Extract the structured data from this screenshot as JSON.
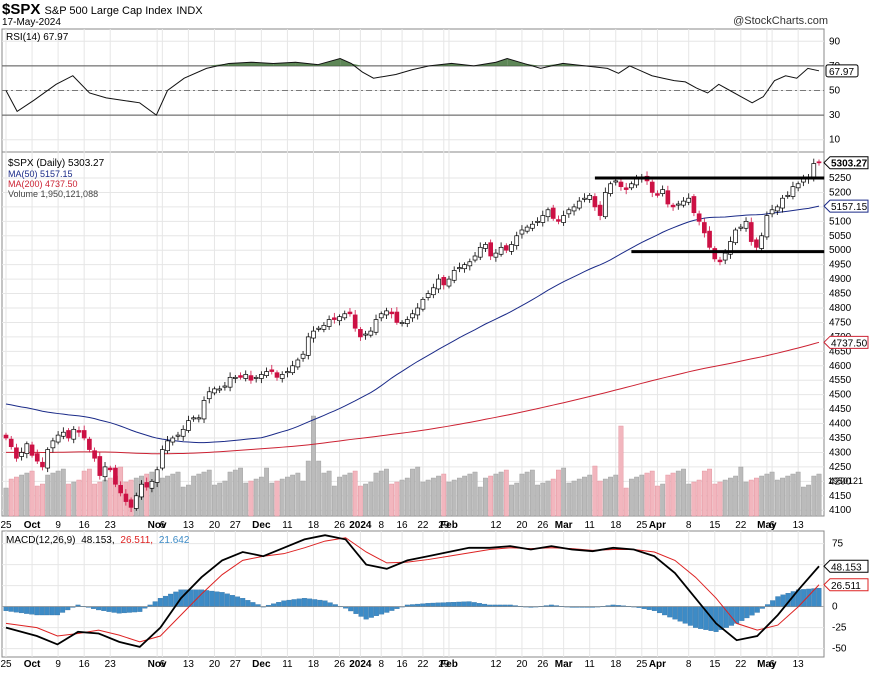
{
  "header": {
    "symbol": "$SPX",
    "name": "S&P 500 Large Cap Index",
    "exchange": "INDX",
    "date": "17-May-2024",
    "source": "@StockCharts.com"
  },
  "colors": {
    "up": "#ffffff",
    "down": "#cc1144",
    "ma50": "#1a2a88",
    "ma200": "#cc2233",
    "vol_up": "#bbbbbb",
    "vol_down": "#f2b6be",
    "rsi_fill": "#4d7a45",
    "macd_hist": "#3d8bc6",
    "signal": "#dd2222"
  },
  "chart_data": [
    {
      "type": "line",
      "panel": "rsi",
      "legend": "RSI(14) 67.97",
      "ylim": [
        0,
        100
      ],
      "yticks": [
        10,
        30,
        50,
        70,
        90
      ],
      "reference_lines": [
        30,
        50,
        70
      ],
      "last_value_label": "67.97",
      "points": [
        [
          0,
          50
        ],
        [
          2,
          33
        ],
        [
          5,
          42
        ],
        [
          9,
          55
        ],
        [
          12,
          62
        ],
        [
          15,
          48
        ],
        [
          18,
          44
        ],
        [
          21,
          42
        ],
        [
          24,
          40
        ],
        [
          27,
          30
        ],
        [
          29,
          50
        ],
        [
          32,
          60
        ],
        [
          36,
          68
        ],
        [
          40,
          72
        ],
        [
          44,
          73
        ],
        [
          48,
          72
        ],
        [
          52,
          73
        ],
        [
          56,
          71
        ],
        [
          60,
          76
        ],
        [
          62,
          72
        ],
        [
          64,
          65
        ],
        [
          66,
          60
        ],
        [
          70,
          63
        ],
        [
          73,
          67
        ],
        [
          76,
          70
        ],
        [
          80,
          72
        ],
        [
          84,
          70
        ],
        [
          88,
          73
        ],
        [
          90,
          76
        ],
        [
          93,
          72
        ],
        [
          96,
          68
        ],
        [
          100,
          72
        ],
        [
          104,
          70
        ],
        [
          108,
          68
        ],
        [
          110,
          64
        ],
        [
          112,
          70
        ],
        [
          114,
          66
        ],
        [
          116,
          62
        ],
        [
          118,
          60
        ],
        [
          120,
          58
        ],
        [
          122,
          57
        ],
        [
          124,
          52
        ],
        [
          126,
          48
        ],
        [
          128,
          55
        ],
        [
          130,
          50
        ],
        [
          132,
          45
        ],
        [
          134,
          40
        ],
        [
          136,
          45
        ],
        [
          138,
          58
        ],
        [
          140,
          62
        ],
        [
          142,
          60
        ],
        [
          144,
          68
        ],
        [
          146,
          66
        ]
      ]
    },
    {
      "type": "candlestick",
      "panel": "price",
      "legend_price": "$SPX (Daily) 5303.27",
      "legend_ma50": "MA(50) 5157.15",
      "legend_ma200": "MA(200) 4737.50",
      "legend_volume": "Volume 1,950,121,088",
      "ylim": [
        4080,
        5340
      ],
      "yticks": [
        4100,
        4150,
        4200,
        4250,
        4300,
        4350,
        4400,
        4450,
        4500,
        4550,
        4600,
        4650,
        4700,
        4750,
        4800,
        4850,
        4900,
        4950,
        5000,
        5050,
        5100,
        5150,
        5200,
        5250
      ],
      "last_price_label": "5303.27",
      "ma50_label": "5157.15",
      "ma200_label": "4737.50",
      "volume_label": "1950121",
      "x_ticks": [
        {
          "i": 0,
          "label": "25"
        },
        {
          "i": 5,
          "label": "Oct"
        },
        {
          "i": 10,
          "label": "9"
        },
        {
          "i": 15,
          "label": "16"
        },
        {
          "i": 20,
          "label": "23"
        },
        {
          "i": 29,
          "label": "Nov"
        },
        {
          "i": 30,
          "label": "6"
        },
        {
          "i": 35,
          "label": "13"
        },
        {
          "i": 40,
          "label": "20"
        },
        {
          "i": 44,
          "label": "27"
        },
        {
          "i": 49,
          "label": "Dec"
        },
        {
          "i": 54,
          "label": "11"
        },
        {
          "i": 59,
          "label": "18"
        },
        {
          "i": 64,
          "label": "26"
        },
        {
          "i": 68,
          "label": "2024"
        },
        {
          "i": 72,
          "label": "8"
        },
        {
          "i": 76,
          "label": "16"
        },
        {
          "i": 80,
          "label": "22"
        },
        {
          "i": 84,
          "label": "29"
        },
        {
          "i": 85,
          "label": "Feb"
        },
        {
          "i": 94,
          "label": "12"
        },
        {
          "i": 99,
          "label": "20"
        },
        {
          "i": 103,
          "label": "26"
        },
        {
          "i": 107,
          "label": "Mar"
        },
        {
          "i": 112,
          "label": "11"
        },
        {
          "i": 117,
          "label": "18"
        },
        {
          "i": 122,
          "label": "25"
        },
        {
          "i": 125,
          "label": "Apr"
        },
        {
          "i": 131,
          "label": "8"
        },
        {
          "i": 136,
          "label": "15"
        },
        {
          "i": 141,
          "label": "22"
        },
        {
          "i": 146,
          "label": "May"
        },
        {
          "i": 147,
          "label": "6"
        },
        {
          "i": 152,
          "label": "13"
        }
      ],
      "support_resistance": [
        {
          "from": 113,
          "to": 157,
          "level": 5250
        },
        {
          "from": 120,
          "to": 157,
          "level": 4995
        }
      ],
      "closes": [
        4350,
        4320,
        4280,
        4300,
        4330,
        4290,
        4270,
        4250,
        4310,
        4340,
        4360,
        4370,
        4350,
        4380,
        4370,
        4350,
        4310,
        4280,
        4220,
        4250,
        4240,
        4190,
        4160,
        4130,
        4110,
        4150,
        4190,
        4180,
        4200,
        4240,
        4310,
        4340,
        4350,
        4360,
        4380,
        4410,
        4420,
        4420,
        4480,
        4510,
        4520,
        4520,
        4530,
        4560,
        4560,
        4560,
        4570,
        4550,
        4560,
        4570,
        4580,
        4580,
        4560,
        4570,
        4580,
        4600,
        4620,
        4640,
        4700,
        4720,
        4730,
        4740,
        4760,
        4760,
        4770,
        4780,
        4780,
        4730,
        4700,
        4710,
        4720,
        4760,
        4780,
        4790,
        4780,
        4750,
        4750,
        4760,
        4780,
        4800,
        4830,
        4850,
        4870,
        4900,
        4880,
        4900,
        4930,
        4940,
        4950,
        4960,
        4980,
        5010,
        5020,
        4980,
        4990,
        5010,
        5000,
        5020,
        5050,
        5070,
        5080,
        5090,
        5100,
        5120,
        5140,
        5110,
        5100,
        5120,
        5140,
        5150,
        5170,
        5180,
        5190,
        5150,
        5120,
        5200,
        5230,
        5240,
        5220,
        5210,
        5230,
        5250,
        5250,
        5240,
        5200,
        5190,
        5210,
        5160,
        5150,
        5160,
        5170,
        5180,
        5130,
        5100,
        5060,
        5010,
        4970,
        4960,
        4990,
        5030,
        5070,
        5080,
        5100,
        5030,
        5010,
        5050,
        5120,
        5140,
        5150,
        5180,
        5190,
        5220,
        5230,
        5250,
        5250,
        5300,
        5303
      ]
    },
    {
      "type": "line",
      "panel": "macd",
      "legend": "MACD(12,26,9) 48.153, 26.511, 21.642",
      "legend_parts": [
        "MACD(12,26,9)",
        "48.153,",
        "26.511,",
        "21.642"
      ],
      "ylim": [
        -60,
        90
      ],
      "yticks": [
        -50,
        -25,
        0,
        25,
        50,
        75
      ],
      "macd_label": "48.153",
      "signal_label": "26.511",
      "macd": [
        [
          0,
          -25
        ],
        [
          6,
          -35
        ],
        [
          10,
          -45
        ],
        [
          14,
          -30
        ],
        [
          18,
          -32
        ],
        [
          22,
          -42
        ],
        [
          26,
          -48
        ],
        [
          30,
          -25
        ],
        [
          34,
          10
        ],
        [
          38,
          35
        ],
        [
          42,
          55
        ],
        [
          46,
          65
        ],
        [
          50,
          60
        ],
        [
          54,
          70
        ],
        [
          58,
          80
        ],
        [
          62,
          85
        ],
        [
          66,
          80
        ],
        [
          70,
          50
        ],
        [
          74,
          45
        ],
        [
          78,
          55
        ],
        [
          82,
          60
        ],
        [
          86,
          65
        ],
        [
          90,
          70
        ],
        [
          94,
          70
        ],
        [
          98,
          72
        ],
        [
          102,
          68
        ],
        [
          106,
          72
        ],
        [
          110,
          68
        ],
        [
          114,
          66
        ],
        [
          118,
          70
        ],
        [
          122,
          68
        ],
        [
          126,
          60
        ],
        [
          130,
          40
        ],
        [
          134,
          10
        ],
        [
          138,
          -20
        ],
        [
          142,
          -40
        ],
        [
          146,
          -35
        ],
        [
          150,
          -10
        ],
        [
          154,
          20
        ],
        [
          158,
          48
        ]
      ],
      "signal": [
        [
          0,
          -20
        ],
        [
          6,
          -25
        ],
        [
          10,
          -35
        ],
        [
          14,
          -32
        ],
        [
          18,
          -28
        ],
        [
          22,
          -34
        ],
        [
          26,
          -42
        ],
        [
          30,
          -35
        ],
        [
          34,
          -10
        ],
        [
          38,
          15
        ],
        [
          42,
          38
        ],
        [
          46,
          55
        ],
        [
          50,
          60
        ],
        [
          54,
          63
        ],
        [
          58,
          70
        ],
        [
          62,
          78
        ],
        [
          66,
          82
        ],
        [
          70,
          65
        ],
        [
          74,
          52
        ],
        [
          78,
          53
        ],
        [
          82,
          56
        ],
        [
          86,
          60
        ],
        [
          90,
          64
        ],
        [
          94,
          68
        ],
        [
          98,
          70
        ],
        [
          102,
          69
        ],
        [
          106,
          70
        ],
        [
          110,
          69
        ],
        [
          114,
          67
        ],
        [
          118,
          68
        ],
        [
          122,
          68
        ],
        [
          126,
          65
        ],
        [
          130,
          55
        ],
        [
          134,
          35
        ],
        [
          138,
          10
        ],
        [
          142,
          -20
        ],
        [
          146,
          -28
        ],
        [
          150,
          -22
        ],
        [
          154,
          0
        ],
        [
          158,
          26
        ]
      ]
    }
  ]
}
